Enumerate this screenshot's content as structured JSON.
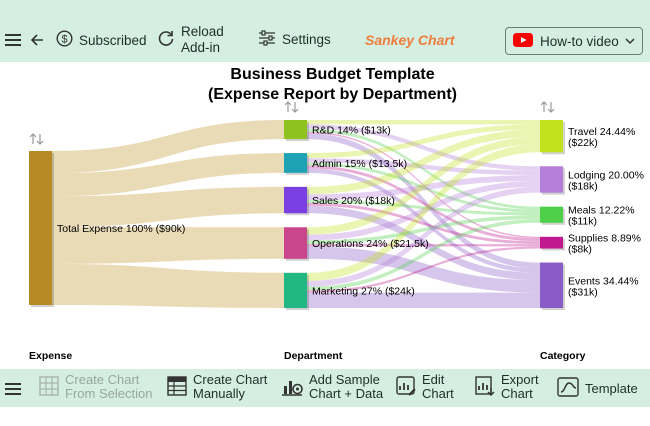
{
  "toolbar": {
    "subscribed_label": "Subscribed",
    "reload_line1": "Reload",
    "reload_line2": "Add-in",
    "settings_label": "Settings",
    "app_title": "Sankey Chart",
    "howto_label": "How-to video"
  },
  "bottom_toolbar": {
    "create_from_selection_line1": "Create Chart",
    "create_from_selection_line2": "From Selection",
    "create_manually_line1": "Create Chart",
    "create_manually_line2": "Manually",
    "add_sample_line1": "Add Sample",
    "add_sample_line2": "Chart + Data",
    "edit_line1": "Edit",
    "edit_line2": "Chart",
    "export_line1": "Export",
    "export_line2": "Chart",
    "template_label": "Template"
  },
  "colors": {
    "toolbar_bg": "#d4efe1",
    "accent_orange": "#f07c3c",
    "youtube_red": "#ff0000"
  },
  "chart_data": {
    "type": "sankey",
    "title_line1": "Business Budget Template",
    "title_line2": "(Expense Report by Department)",
    "levels": [
      "Expense",
      "Department",
      "Category"
    ],
    "nodes": [
      {
        "id": "total",
        "level": 0,
        "label": "Total Expense 100% ($90k)",
        "value": 90,
        "color": "#b88a26"
      },
      {
        "id": "rd",
        "level": 1,
        "label": "R&D 14% ($13k)",
        "value": 13,
        "color": "#8ec21e"
      },
      {
        "id": "admin",
        "level": 1,
        "label": "Admin 15% ($13.5k)",
        "value": 13.5,
        "color": "#1ea3b5"
      },
      {
        "id": "sales",
        "level": 1,
        "label": "Sales 20% ($18k)",
        "value": 18,
        "color": "#7a3fe0"
      },
      {
        "id": "ops",
        "level": 1,
        "label": "Operations 24% ($21.5k)",
        "value": 21.5,
        "color": "#c9458c"
      },
      {
        "id": "mkt",
        "level": 1,
        "label": "Marketing 27% ($24k)",
        "value": 24,
        "color": "#20b783"
      },
      {
        "id": "travel",
        "level": 2,
        "label": "Travel 24.44%",
        "sublabel": "($22k)",
        "value": 22,
        "color": "#c1e21c"
      },
      {
        "id": "lodging",
        "level": 2,
        "label": "Lodging 20.00%",
        "sublabel": "($18k)",
        "value": 18,
        "color": "#b57ed9"
      },
      {
        "id": "meals",
        "level": 2,
        "label": "Meals 12.22%",
        "sublabel": "($11k)",
        "value": 11,
        "color": "#4fd04a"
      },
      {
        "id": "supplies",
        "level": 2,
        "label": "Supplies 8.89%",
        "sublabel": "($8k)",
        "value": 8,
        "color": "#c0188e"
      },
      {
        "id": "events",
        "level": 2,
        "label": "Events 34.44%",
        "sublabel": "($31k)",
        "value": 31,
        "color": "#8a5cc5"
      }
    ],
    "links": [
      {
        "source": "total",
        "target": "rd",
        "value": 13
      },
      {
        "source": "total",
        "target": "admin",
        "value": 13.5
      },
      {
        "source": "total",
        "target": "sales",
        "value": 18
      },
      {
        "source": "total",
        "target": "ops",
        "value": 21.5
      },
      {
        "source": "total",
        "target": "mkt",
        "value": 24
      },
      {
        "source": "rd",
        "target": "travel",
        "value": 3
      },
      {
        "source": "rd",
        "target": "lodging",
        "value": 3
      },
      {
        "source": "rd",
        "target": "meals",
        "value": 2
      },
      {
        "source": "rd",
        "target": "supplies",
        "value": 1
      },
      {
        "source": "rd",
        "target": "events",
        "value": 4
      },
      {
        "source": "admin",
        "target": "travel",
        "value": 3.5
      },
      {
        "source": "admin",
        "target": "lodging",
        "value": 3
      },
      {
        "source": "admin",
        "target": "meals",
        "value": 2
      },
      {
        "source": "admin",
        "target": "supplies",
        "value": 2
      },
      {
        "source": "admin",
        "target": "events",
        "value": 3
      },
      {
        "source": "sales",
        "target": "travel",
        "value": 5
      },
      {
        "source": "sales",
        "target": "lodging",
        "value": 4
      },
      {
        "source": "sales",
        "target": "meals",
        "value": 2
      },
      {
        "source": "sales",
        "target": "supplies",
        "value": 2
      },
      {
        "source": "sales",
        "target": "events",
        "value": 5
      },
      {
        "source": "ops",
        "target": "travel",
        "value": 5
      },
      {
        "source": "ops",
        "target": "lodging",
        "value": 4
      },
      {
        "source": "ops",
        "target": "meals",
        "value": 2.5
      },
      {
        "source": "ops",
        "target": "supplies",
        "value": 1.5
      },
      {
        "source": "ops",
        "target": "events",
        "value": 8.5
      },
      {
        "source": "mkt",
        "target": "travel",
        "value": 5.5
      },
      {
        "source": "mkt",
        "target": "lodging",
        "value": 4
      },
      {
        "source": "mkt",
        "target": "meals",
        "value": 2.5
      },
      {
        "source": "mkt",
        "target": "supplies",
        "value": 1.5
      },
      {
        "source": "mkt",
        "target": "events",
        "value": 10.5
      }
    ]
  }
}
